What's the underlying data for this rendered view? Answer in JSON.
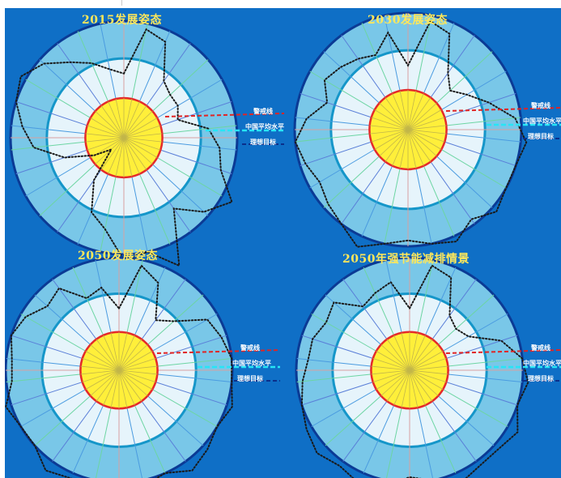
{
  "panels": [
    {
      "title": "2015发展姿态",
      "outer_points": [
        0.55,
        0.95,
        0.9,
        0.6,
        0.55,
        0.55,
        0.5,
        0.75,
        0.85,
        0.9,
        1.1,
        0.95,
        0.75,
        1.2,
        1.0,
        1.05,
        0.8,
        0.7,
        0.45,
        0.15,
        0.3,
        0.55,
        0.8,
        0.9,
        1.0,
        1.05,
        0.95,
        0.8,
        0.7,
        0.6
      ]
    },
    {
      "title": "2030发展姿态",
      "outer_points": [
        0.55,
        0.95,
        0.9,
        0.6,
        0.5,
        0.6,
        0.75,
        0.95,
        1.05,
        1.0,
        1.0,
        1.05,
        0.95,
        1.05,
        1.0,
        0.95,
        1.0,
        1.1,
        1.0,
        0.95,
        0.9,
        0.95,
        1.0,
        0.9,
        0.75,
        0.85,
        0.8,
        0.75,
        0.7,
        0.85
      ]
    },
    {
      "title": "2050发展姿态",
      "outer_points": [
        0.55,
        0.95,
        0.85,
        0.55,
        0.65,
        0.9,
        0.95,
        1.0,
        1.0,
        1.05,
        1.0,
        1.05,
        1.1,
        1.0,
        1.05,
        1.0,
        1.05,
        1.05,
        1.1,
        1.0,
        1.0,
        1.05,
        0.95,
        0.95,
        1.0,
        0.95,
        0.85,
        0.9,
        0.7,
        0.75
      ]
    },
    {
      "title": "2050年强节能减排情景",
      "outer_points": [
        0.55,
        0.95,
        0.9,
        0.6,
        0.55,
        0.6,
        0.85,
        1.0,
        1.05,
        1.0,
        1.1,
        1.05,
        1.05,
        1.1,
        1.0,
        0.95,
        1.05,
        1.1,
        1.05,
        1.1,
        1.05,
        1.0,
        0.95,
        0.9,
        0.9,
        0.85,
        0.9,
        0.7,
        0.75,
        0.8
      ]
    }
  ],
  "legend": {
    "warning_line": "警戒线",
    "china_average": "中国平均水平",
    "ideal_target": "理想目标"
  },
  "colors": {
    "background": "#0f6fc6",
    "outer_ring": "#79c7e8",
    "inner_ring": "#e6f4fb",
    "core": "#ffef3a",
    "core_border": "#e42a2a",
    "ellipse_border": "#0b3a95",
    "mid_border": "#1596c9",
    "warning_line": "#e02525",
    "china_average_line": "#27e5f5",
    "ideal_target_line": "#0a2f8a",
    "title": "#ffe85a"
  }
}
